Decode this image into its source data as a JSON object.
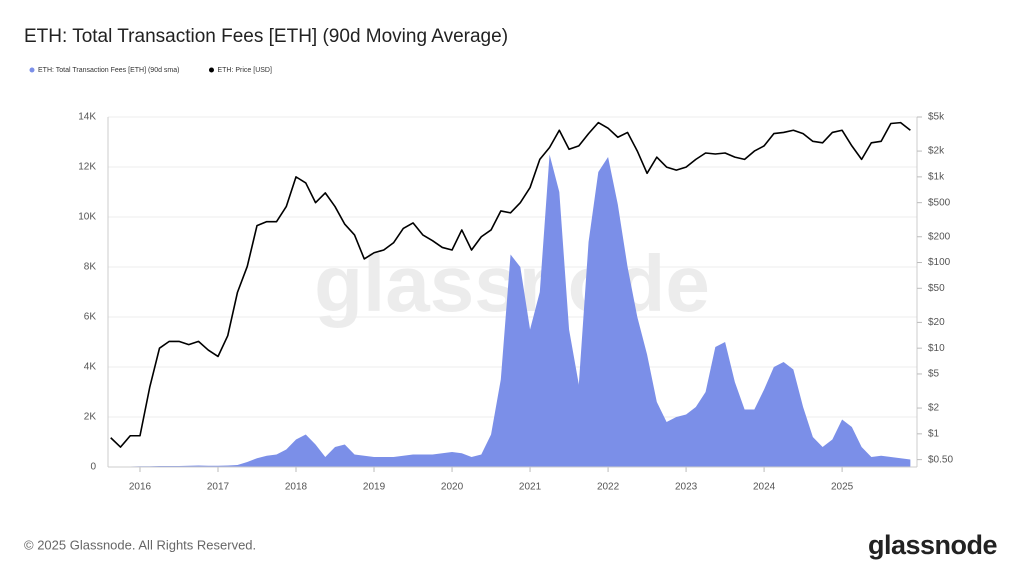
{
  "chart_data": {
    "type": "area_line",
    "title": "ETH: Total Transaction Fees [ETH] (90d Moving Average)",
    "footer": "© 2025 Glassnode. All Rights Reserved.",
    "logo": "glassnode",
    "watermark": "glassnode",
    "x": [
      2015.625,
      2015.75,
      2015.875,
      2016.0,
      2016.125,
      2016.25,
      2016.375,
      2016.5,
      2016.625,
      2016.75,
      2016.875,
      2017.0,
      2017.125,
      2017.25,
      2017.375,
      2017.5,
      2017.625,
      2017.75,
      2017.875,
      2018.0,
      2018.125,
      2018.25,
      2018.375,
      2018.5,
      2018.625,
      2018.75,
      2018.875,
      2019.0,
      2019.125,
      2019.25,
      2019.375,
      2019.5,
      2019.625,
      2019.75,
      2019.875,
      2020.0,
      2020.125,
      2020.25,
      2020.375,
      2020.5,
      2020.625,
      2020.75,
      2020.875,
      2021.0,
      2021.125,
      2021.25,
      2021.375,
      2021.5,
      2021.625,
      2021.75,
      2021.875,
      2022.0,
      2022.125,
      2022.25,
      2022.375,
      2022.5,
      2022.625,
      2022.75,
      2022.875,
      2023.0,
      2023.125,
      2023.25,
      2023.375,
      2023.5,
      2023.625,
      2023.75,
      2023.875,
      2024.0,
      2024.125,
      2024.25,
      2024.375,
      2024.5,
      2024.625,
      2024.75,
      2024.875,
      2025.0,
      2025.125,
      2025.25,
      2025.375,
      2025.5,
      2025.625,
      2025.75,
      2025.875
    ],
    "series": [
      {
        "name": "ETH: Total Transaction Fees [ETH] (90d sma)",
        "color": "#7b8fe8",
        "axis": "y",
        "values": [
          0,
          10,
          20,
          30,
          30,
          40,
          40,
          40,
          50,
          60,
          50,
          50,
          60,
          80,
          200,
          350,
          450,
          500,
          700,
          1100,
          1300,
          900,
          400,
          800,
          900,
          500,
          450,
          400,
          400,
          400,
          450,
          500,
          500,
          500,
          550,
          600,
          550,
          400,
          500,
          1300,
          3500,
          8500,
          8000,
          5500,
          7000,
          12500,
          11000,
          5500,
          3300,
          9000,
          11800,
          12400,
          10500,
          8000,
          6000,
          4500,
          2600,
          1800,
          2000,
          2100,
          2400,
          3000,
          4800,
          5000,
          3400,
          2300,
          2300,
          3100,
          4000,
          4200,
          3900,
          2400,
          1200,
          800,
          1100,
          1900,
          1600,
          800,
          400,
          450,
          400,
          350,
          300
        ]
      },
      {
        "name": "ETH: Price [USD]",
        "color": "#000000",
        "axis": "y2",
        "values": [
          0.9,
          0.7,
          0.95,
          0.95,
          3.5,
          10,
          12,
          12,
          11,
          12,
          9.5,
          8,
          14,
          45,
          90,
          270,
          300,
          300,
          450,
          1000,
          850,
          500,
          650,
          450,
          280,
          210,
          110,
          130,
          140,
          170,
          250,
          290,
          210,
          180,
          150,
          140,
          240,
          140,
          200,
          240,
          400,
          380,
          500,
          750,
          1600,
          2200,
          3500,
          2100,
          2300,
          3200,
          4300,
          3700,
          2900,
          3300,
          2000,
          1100,
          1700,
          1300,
          1200,
          1300,
          1600,
          1900,
          1850,
          1900,
          1700,
          1600,
          2000,
          2300,
          3200,
          3300,
          3500,
          3200,
          2600,
          2500,
          3300,
          3500,
          2300,
          1600,
          2500,
          2600,
          4200,
          4300,
          3500
        ]
      }
    ],
    "xlim": [
      2015.59,
      2025.96
    ],
    "xticks": [
      2016,
      2017,
      2018,
      2019,
      2020,
      2021,
      2022,
      2023,
      2024,
      2025
    ],
    "ylim": [
      0,
      14000
    ],
    "yticks": [
      0,
      {
        "value": 2000,
        "label": "2K"
      },
      {
        "value": 4000,
        "label": "4K"
      },
      {
        "value": 6000,
        "label": "6K"
      },
      {
        "value": 8000,
        "label": "8K"
      },
      {
        "value": 10000,
        "label": "10K"
      },
      {
        "value": 12000,
        "label": "12K"
      },
      {
        "value": 14000,
        "label": "14K"
      }
    ],
    "y2lim": [
      0.41,
      5000
    ],
    "y2scale": "log",
    "y2ticks": [
      {
        "value": 0.5,
        "label": "$0.50"
      },
      {
        "value": 1,
        "label": "$1"
      },
      {
        "value": 2,
        "label": "$2"
      },
      {
        "value": 5,
        "label": "$5"
      },
      {
        "value": 10,
        "label": "$10"
      },
      {
        "value": 20,
        "label": "$20"
      },
      {
        "value": 50,
        "label": "$50"
      },
      {
        "value": 100,
        "label": "$100"
      },
      {
        "value": 200,
        "label": "$200"
      },
      {
        "value": 500,
        "label": "$500"
      },
      {
        "value": 1000,
        "label": "$1k"
      },
      {
        "value": 2000,
        "label": "$2k"
      },
      {
        "value": 5000,
        "label": "$5k"
      }
    ],
    "grid": true
  }
}
